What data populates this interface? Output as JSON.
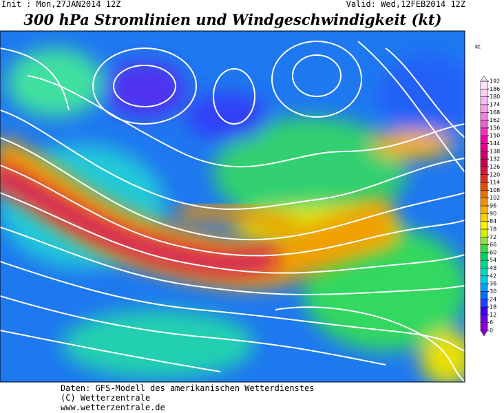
{
  "header": {
    "init": "Init : Mon,27JAN2014 12Z",
    "valid": "Valid: Wed,12FEB2014 12Z",
    "title": "300 hPa Stromlinien und Windgeschwindigkeit (kt)"
  },
  "colorbar": {
    "unit": "kt",
    "ticks": [
      0,
      6,
      12,
      18,
      24,
      30,
      36,
      42,
      48,
      54,
      60,
      66,
      72,
      78,
      84,
      90,
      96,
      102,
      108,
      114,
      120,
      126,
      132,
      138,
      144,
      150,
      156,
      162,
      168,
      174,
      180,
      186,
      192
    ],
    "colors": [
      "#9000d0",
      "#7000e0",
      "#4000f0",
      "#2040ff",
      "#0070ff",
      "#00a0ff",
      "#00c8e8",
      "#00d8c0",
      "#00d890",
      "#00d060",
      "#40d840",
      "#90e040",
      "#d0f000",
      "#f8f000",
      "#f8d000",
      "#f8b000",
      "#f09000",
      "#e87000",
      "#e05000",
      "#d83020",
      "#d01840",
      "#c80050",
      "#d00070",
      "#e00090",
      "#f000a8",
      "#f030c0",
      "#f060d0",
      "#f080e0",
      "#f8a0e8",
      "#f8b8f0",
      "#fcd0f4",
      "#fde0f8"
    ]
  },
  "footer": [
    "Daten: GFS-Modell des amerikanischen Wetterdienstes",
    "(C) Wetterzentrale",
    "www.wetterzentrale.de"
  ]
}
